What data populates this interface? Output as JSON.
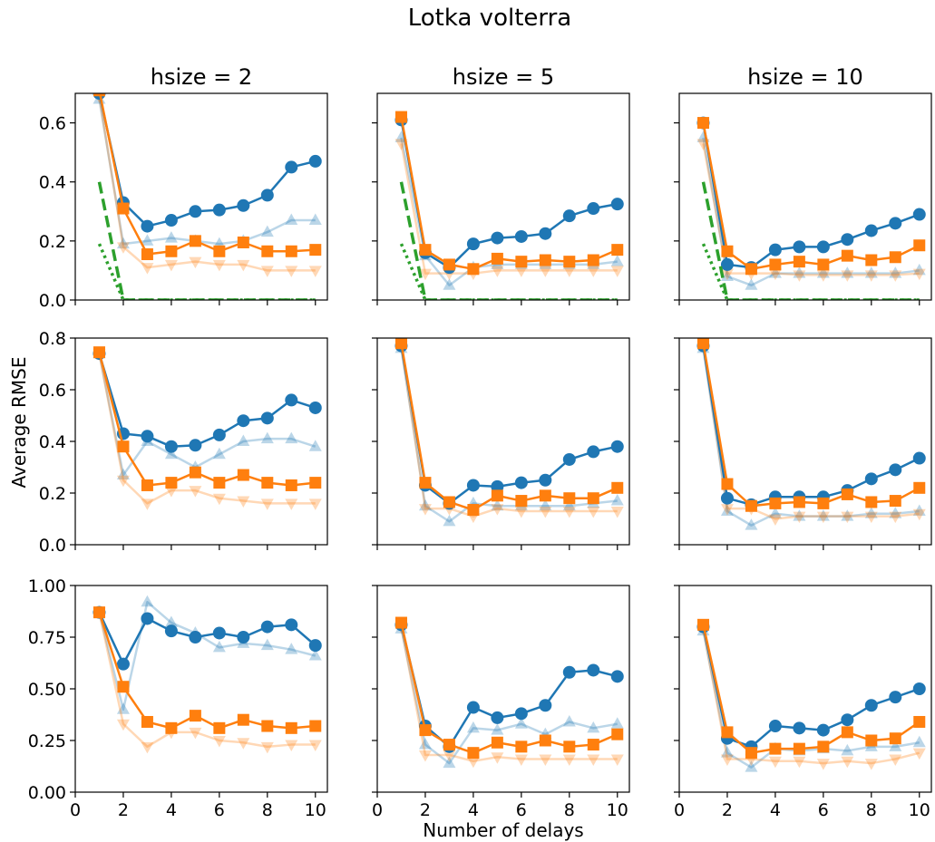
{
  "figure": {
    "suptitle": "Lotka volterra",
    "ylabel": "Average RMSE",
    "xlabel": "Number of delays",
    "colors": {
      "blue": "#1f77b4",
      "orange": "#ff7f0e",
      "green": "#2ca02c"
    }
  },
  "chart_data": [
    {
      "type": "line",
      "row": 0,
      "col": 0,
      "title": "hsize = 2",
      "xlim": [
        0,
        10.5
      ],
      "ylim": [
        0,
        0.7
      ],
      "xticks": [
        0,
        2,
        4,
        6,
        8,
        10
      ],
      "yticks": [
        0.0,
        0.2,
        0.4,
        0.6
      ],
      "ytick_labels": [
        "0.0",
        "0.2",
        "0.4",
        "0.6"
      ],
      "x": [
        1,
        2,
        3,
        4,
        5,
        6,
        7,
        8,
        9,
        10
      ],
      "series": [
        {
          "color": "blue",
          "marker": "circle",
          "alpha": 1,
          "values": [
            0.7,
            0.33,
            0.25,
            0.27,
            0.3,
            0.305,
            0.32,
            0.355,
            0.45,
            0.47
          ]
        },
        {
          "color": "blue",
          "marker": "triangle-up",
          "alpha": 0.3,
          "values": [
            0.68,
            0.19,
            0.2,
            0.21,
            0.2,
            0.19,
            0.2,
            0.23,
            0.27,
            0.27
          ]
        },
        {
          "color": "orange",
          "marker": "square",
          "alpha": 1,
          "values": [
            0.71,
            0.31,
            0.155,
            0.165,
            0.2,
            0.165,
            0.195,
            0.165,
            0.165,
            0.17
          ]
        },
        {
          "color": "orange",
          "marker": "triangle-down",
          "alpha": 0.3,
          "values": [
            0.69,
            0.18,
            0.11,
            0.12,
            0.13,
            0.12,
            0.12,
            0.1,
            0.1,
            0.1
          ]
        },
        {
          "color": "green",
          "dash": "dashed",
          "values": [
            0.4,
            0.0,
            0.0,
            0.0,
            0.0,
            0.0,
            0.0,
            0.0,
            0.0,
            0.0
          ]
        },
        {
          "color": "green",
          "dash": "dotted",
          "values": [
            0.19,
            0.0,
            0.0,
            0.0,
            0.0,
            0.0,
            0.0,
            0.0,
            0.0,
            0.0
          ]
        }
      ]
    },
    {
      "type": "line",
      "row": 0,
      "col": 1,
      "title": "hsize = 5",
      "xlim": [
        0,
        10.5
      ],
      "ylim": [
        0,
        0.7
      ],
      "xticks": [
        0,
        2,
        4,
        6,
        8,
        10
      ],
      "yticks": [
        0.0,
        0.2,
        0.4,
        0.6
      ],
      "ytick_labels": [],
      "x": [
        1,
        2,
        3,
        4,
        5,
        6,
        7,
        8,
        9,
        10
      ],
      "series": [
        {
          "color": "blue",
          "marker": "circle",
          "alpha": 1,
          "values": [
            0.61,
            0.16,
            0.11,
            0.19,
            0.21,
            0.215,
            0.225,
            0.285,
            0.31,
            0.325
          ]
        },
        {
          "color": "blue",
          "marker": "triangle-up",
          "alpha": 0.3,
          "values": [
            0.55,
            0.15,
            0.05,
            0.11,
            0.12,
            0.12,
            0.12,
            0.12,
            0.12,
            0.13
          ]
        },
        {
          "color": "orange",
          "marker": "square",
          "alpha": 1,
          "values": [
            0.62,
            0.17,
            0.12,
            0.105,
            0.14,
            0.13,
            0.135,
            0.13,
            0.135,
            0.17
          ]
        },
        {
          "color": "orange",
          "marker": "triangle-down",
          "alpha": 0.3,
          "values": [
            0.53,
            0.09,
            0.09,
            0.09,
            0.1,
            0.1,
            0.1,
            0.1,
            0.1,
            0.1
          ]
        },
        {
          "color": "green",
          "dash": "dashed",
          "values": [
            0.4,
            0.0,
            0.0,
            0.0,
            0.0,
            0.0,
            0.0,
            0.0,
            0.0,
            0.0
          ]
        },
        {
          "color": "green",
          "dash": "dotted",
          "values": [
            0.19,
            0.0,
            0.0,
            0.0,
            0.0,
            0.0,
            0.0,
            0.0,
            0.0,
            0.0
          ]
        }
      ]
    },
    {
      "type": "line",
      "row": 0,
      "col": 2,
      "title": "hsize = 10",
      "xlim": [
        0,
        10.5
      ],
      "ylim": [
        0,
        0.7
      ],
      "xticks": [
        0,
        2,
        4,
        6,
        8,
        10
      ],
      "yticks": [
        0.0,
        0.2,
        0.4,
        0.6
      ],
      "ytick_labels": [],
      "x": [
        1,
        2,
        3,
        4,
        5,
        6,
        7,
        8,
        9,
        10
      ],
      "series": [
        {
          "color": "blue",
          "marker": "circle",
          "alpha": 1,
          "values": [
            0.6,
            0.12,
            0.11,
            0.17,
            0.18,
            0.18,
            0.205,
            0.235,
            0.26,
            0.29
          ]
        },
        {
          "color": "blue",
          "marker": "triangle-up",
          "alpha": 0.3,
          "values": [
            0.55,
            0.08,
            0.05,
            0.09,
            0.09,
            0.09,
            0.09,
            0.09,
            0.09,
            0.1
          ]
        },
        {
          "color": "orange",
          "marker": "square",
          "alpha": 1,
          "values": [
            0.6,
            0.165,
            0.105,
            0.12,
            0.13,
            0.12,
            0.15,
            0.135,
            0.145,
            0.185
          ]
        },
        {
          "color": "orange",
          "marker": "triangle-down",
          "alpha": 0.3,
          "values": [
            0.53,
            0.09,
            0.09,
            0.09,
            0.085,
            0.085,
            0.085,
            0.085,
            0.085,
            0.09
          ]
        },
        {
          "color": "green",
          "dash": "dashed",
          "values": [
            0.4,
            0.0,
            0.0,
            0.0,
            0.0,
            0.0,
            0.0,
            0.0,
            0.0,
            0.0
          ]
        },
        {
          "color": "green",
          "dash": "dotted",
          "values": [
            0.19,
            0.0,
            0.0,
            0.0,
            0.0,
            0.0,
            0.0,
            0.0,
            0.0,
            0.0
          ]
        }
      ]
    },
    {
      "type": "line",
      "row": 1,
      "col": 0,
      "title": "",
      "xlim": [
        0,
        10.5
      ],
      "ylim": [
        0,
        0.8
      ],
      "xticks": [
        0,
        2,
        4,
        6,
        8,
        10
      ],
      "yticks": [
        0.0,
        0.2,
        0.4,
        0.6,
        0.8
      ],
      "ytick_labels": [
        "0.0",
        "0.2",
        "0.4",
        "0.6",
        "0.8"
      ],
      "x": [
        1,
        2,
        3,
        4,
        5,
        6,
        7,
        8,
        9,
        10
      ],
      "series": [
        {
          "color": "blue",
          "marker": "circle",
          "alpha": 1,
          "values": [
            0.74,
            0.43,
            0.42,
            0.38,
            0.385,
            0.425,
            0.48,
            0.49,
            0.56,
            0.53
          ]
        },
        {
          "color": "blue",
          "marker": "triangle-up",
          "alpha": 0.3,
          "values": [
            0.74,
            0.27,
            0.4,
            0.35,
            0.3,
            0.35,
            0.4,
            0.41,
            0.41,
            0.38
          ]
        },
        {
          "color": "orange",
          "marker": "square",
          "alpha": 1,
          "values": [
            0.745,
            0.38,
            0.23,
            0.24,
            0.28,
            0.24,
            0.27,
            0.24,
            0.23,
            0.24
          ]
        },
        {
          "color": "orange",
          "marker": "triangle-down",
          "alpha": 0.3,
          "values": [
            0.74,
            0.25,
            0.16,
            0.21,
            0.21,
            0.18,
            0.17,
            0.16,
            0.16,
            0.16
          ]
        }
      ]
    },
    {
      "type": "line",
      "row": 1,
      "col": 1,
      "title": "",
      "xlim": [
        0,
        10.5
      ],
      "ylim": [
        0,
        0.8
      ],
      "xticks": [
        0,
        2,
        4,
        6,
        8,
        10
      ],
      "yticks": [
        0.0,
        0.2,
        0.4,
        0.6,
        0.8
      ],
      "ytick_labels": [],
      "x": [
        1,
        2,
        3,
        4,
        5,
        6,
        7,
        8,
        9,
        10
      ],
      "series": [
        {
          "color": "blue",
          "marker": "circle",
          "alpha": 1,
          "values": [
            0.77,
            0.23,
            0.16,
            0.23,
            0.225,
            0.24,
            0.25,
            0.33,
            0.36,
            0.38
          ]
        },
        {
          "color": "blue",
          "marker": "triangle-up",
          "alpha": 0.3,
          "values": [
            0.76,
            0.15,
            0.09,
            0.16,
            0.15,
            0.15,
            0.15,
            0.15,
            0.16,
            0.17
          ]
        },
        {
          "color": "orange",
          "marker": "square",
          "alpha": 1,
          "values": [
            0.78,
            0.24,
            0.165,
            0.135,
            0.19,
            0.17,
            0.19,
            0.18,
            0.18,
            0.22
          ]
        },
        {
          "color": "orange",
          "marker": "triangle-down",
          "alpha": 0.3,
          "values": [
            0.77,
            0.14,
            0.14,
            0.11,
            0.14,
            0.13,
            0.13,
            0.13,
            0.13,
            0.13
          ]
        }
      ]
    },
    {
      "type": "line",
      "row": 1,
      "col": 2,
      "title": "",
      "xlim": [
        0,
        10.5
      ],
      "ylim": [
        0,
        0.8
      ],
      "xticks": [
        0,
        2,
        4,
        6,
        8,
        10
      ],
      "yticks": [
        0.0,
        0.2,
        0.4,
        0.6,
        0.8
      ],
      "ytick_labels": [],
      "x": [
        1,
        2,
        3,
        4,
        5,
        6,
        7,
        8,
        9,
        10
      ],
      "series": [
        {
          "color": "blue",
          "marker": "circle",
          "alpha": 1,
          "values": [
            0.77,
            0.18,
            0.155,
            0.185,
            0.185,
            0.185,
            0.21,
            0.255,
            0.29,
            0.335
          ]
        },
        {
          "color": "blue",
          "marker": "triangle-up",
          "alpha": 0.3,
          "values": [
            0.76,
            0.13,
            0.075,
            0.12,
            0.11,
            0.11,
            0.11,
            0.12,
            0.12,
            0.13
          ]
        },
        {
          "color": "orange",
          "marker": "square",
          "alpha": 1,
          "values": [
            0.78,
            0.235,
            0.15,
            0.16,
            0.165,
            0.16,
            0.195,
            0.165,
            0.17,
            0.22
          ]
        },
        {
          "color": "orange",
          "marker": "triangle-down",
          "alpha": 0.3,
          "values": [
            0.77,
            0.14,
            0.14,
            0.1,
            0.11,
            0.11,
            0.11,
            0.11,
            0.11,
            0.12
          ]
        }
      ]
    },
    {
      "type": "line",
      "row": 2,
      "col": 0,
      "title": "",
      "xlim": [
        0,
        10.5
      ],
      "ylim": [
        0,
        1.0
      ],
      "xticks": [
        0,
        2,
        4,
        6,
        8,
        10
      ],
      "yticks": [
        0.0,
        0.25,
        0.5,
        0.75,
        1.0
      ],
      "ytick_labels": [
        "0.00",
        "0.25",
        "0.50",
        "0.75",
        "1.00"
      ],
      "xtick_labels": [
        "0",
        "2",
        "4",
        "6",
        "8",
        "10"
      ],
      "x": [
        1,
        2,
        3,
        4,
        5,
        6,
        7,
        8,
        9,
        10
      ],
      "series": [
        {
          "color": "blue",
          "marker": "circle",
          "alpha": 1,
          "values": [
            0.87,
            0.62,
            0.84,
            0.78,
            0.75,
            0.77,
            0.75,
            0.8,
            0.81,
            0.71
          ]
        },
        {
          "color": "blue",
          "marker": "triangle-up",
          "alpha": 0.3,
          "values": [
            0.87,
            0.4,
            0.92,
            0.82,
            0.77,
            0.7,
            0.72,
            0.71,
            0.69,
            0.66
          ]
        },
        {
          "color": "orange",
          "marker": "square",
          "alpha": 1,
          "values": [
            0.87,
            0.51,
            0.34,
            0.31,
            0.37,
            0.31,
            0.35,
            0.32,
            0.31,
            0.32
          ]
        },
        {
          "color": "orange",
          "marker": "triangle-down",
          "alpha": 0.3,
          "values": [
            0.87,
            0.33,
            0.22,
            0.29,
            0.29,
            0.25,
            0.24,
            0.22,
            0.23,
            0.23
          ]
        }
      ]
    },
    {
      "type": "line",
      "row": 2,
      "col": 1,
      "title": "",
      "xlim": [
        0,
        10.5
      ],
      "ylim": [
        0,
        1.0
      ],
      "xticks": [
        0,
        2,
        4,
        6,
        8,
        10
      ],
      "yticks": [
        0.0,
        0.25,
        0.5,
        0.75,
        1.0
      ],
      "ytick_labels": [],
      "xtick_labels": [
        "0",
        "2",
        "4",
        "6",
        "8",
        "10"
      ],
      "x": [
        1,
        2,
        3,
        4,
        5,
        6,
        7,
        8,
        9,
        10
      ],
      "series": [
        {
          "color": "blue",
          "marker": "circle",
          "alpha": 1,
          "values": [
            0.81,
            0.32,
            0.22,
            0.41,
            0.36,
            0.38,
            0.42,
            0.58,
            0.59,
            0.56
          ]
        },
        {
          "color": "blue",
          "marker": "triangle-up",
          "alpha": 0.3,
          "values": [
            0.79,
            0.23,
            0.14,
            0.31,
            0.3,
            0.33,
            0.28,
            0.34,
            0.31,
            0.33
          ]
        },
        {
          "color": "orange",
          "marker": "square",
          "alpha": 1,
          "values": [
            0.82,
            0.3,
            0.23,
            0.19,
            0.24,
            0.22,
            0.25,
            0.22,
            0.23,
            0.28
          ]
        },
        {
          "color": "orange",
          "marker": "triangle-down",
          "alpha": 0.3,
          "values": [
            0.8,
            0.18,
            0.18,
            0.15,
            0.17,
            0.16,
            0.16,
            0.16,
            0.16,
            0.16
          ]
        }
      ]
    },
    {
      "type": "line",
      "row": 2,
      "col": 2,
      "title": "",
      "xlim": [
        0,
        10.5
      ],
      "ylim": [
        0,
        1.0
      ],
      "xticks": [
        0,
        2,
        4,
        6,
        8,
        10
      ],
      "yticks": [
        0.0,
        0.25,
        0.5,
        0.75,
        1.0
      ],
      "ytick_labels": [],
      "xtick_labels": [
        "0",
        "2",
        "4",
        "6",
        "8",
        "10"
      ],
      "x": [
        1,
        2,
        3,
        4,
        5,
        6,
        7,
        8,
        9,
        10
      ],
      "series": [
        {
          "color": "blue",
          "marker": "circle",
          "alpha": 1,
          "values": [
            0.8,
            0.26,
            0.22,
            0.32,
            0.31,
            0.3,
            0.35,
            0.42,
            0.46,
            0.5
          ]
        },
        {
          "color": "blue",
          "marker": "triangle-up",
          "alpha": 0.3,
          "values": [
            0.78,
            0.19,
            0.12,
            0.21,
            0.2,
            0.21,
            0.2,
            0.22,
            0.22,
            0.24
          ]
        },
        {
          "color": "orange",
          "marker": "square",
          "alpha": 1,
          "values": [
            0.81,
            0.29,
            0.19,
            0.21,
            0.21,
            0.22,
            0.29,
            0.25,
            0.26,
            0.34
          ]
        },
        {
          "color": "orange",
          "marker": "triangle-down",
          "alpha": 0.3,
          "values": [
            0.79,
            0.16,
            0.16,
            0.15,
            0.15,
            0.14,
            0.15,
            0.14,
            0.16,
            0.19
          ]
        }
      ]
    }
  ]
}
